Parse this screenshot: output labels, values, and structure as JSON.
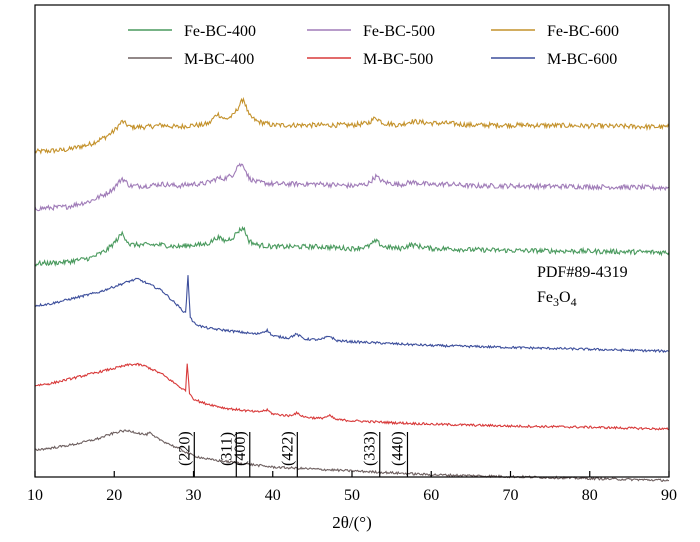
{
  "chart_data": {
    "type": "line",
    "title": "",
    "xlabel": "2θ/(°)",
    "ylabel": "",
    "xlim": [
      10,
      90
    ],
    "xticks": [
      "10",
      "20",
      "30",
      "40",
      "50",
      "60",
      "70",
      "80",
      "90"
    ],
    "grid": false,
    "legend_placement": "top",
    "legend": [
      {
        "name": "Fe-BC-400",
        "color": "#4a9a5e"
      },
      {
        "name": "Fe-BC-500",
        "color": "#a07cb8"
      },
      {
        "name": "Fe-BC-600",
        "color": "#c4922c"
      },
      {
        "name": "M-BC-400",
        "color": "#6e6060"
      },
      {
        "name": "M-BC-500",
        "color": "#d83a3a"
      },
      {
        "name": "M-BC-600",
        "color": "#3d4f9c"
      }
    ],
    "series": [
      {
        "key": "fe600",
        "color": "#c4922c",
        "x": [
          10,
          14,
          17,
          19,
          20,
          21,
          22,
          24,
          26,
          28,
          30,
          31,
          32,
          33,
          34,
          35,
          35.6,
          36.3,
          37,
          38,
          40,
          43,
          46,
          50,
          52,
          53,
          54,
          56,
          57.5,
          60,
          62,
          65,
          70,
          80,
          90
        ],
        "y": [
          0.535,
          0.54,
          0.555,
          0.575,
          0.59,
          0.615,
          0.6,
          0.6,
          0.605,
          0.6,
          0.605,
          0.605,
          0.61,
          0.635,
          0.62,
          0.63,
          0.65,
          0.675,
          0.63,
          0.615,
          0.605,
          0.605,
          0.605,
          0.605,
          0.61,
          0.625,
          0.61,
          0.605,
          0.615,
          0.61,
          0.61,
          0.605,
          0.605,
          0.603,
          0.6
        ]
      },
      {
        "key": "fe500",
        "color": "#a07cb8",
        "x": [
          10,
          14,
          17,
          19,
          20,
          21,
          22,
          24,
          26,
          28,
          30,
          31,
          32,
          33,
          34,
          35,
          35.6,
          36.3,
          37,
          38,
          40,
          43,
          46,
          50,
          52,
          53,
          54,
          56,
          57.5,
          60,
          62,
          65,
          70,
          80,
          90
        ],
        "y": [
          0.385,
          0.39,
          0.405,
          0.425,
          0.44,
          0.465,
          0.445,
          0.445,
          0.45,
          0.445,
          0.45,
          0.45,
          0.455,
          0.465,
          0.465,
          0.475,
          0.5,
          0.5,
          0.465,
          0.455,
          0.45,
          0.45,
          0.45,
          0.445,
          0.45,
          0.47,
          0.455,
          0.448,
          0.455,
          0.448,
          0.45,
          0.445,
          0.445,
          0.443,
          0.44
        ]
      },
      {
        "key": "fe400",
        "color": "#4a9a5e",
        "x": [
          10,
          14,
          17,
          19,
          20,
          21,
          22,
          24,
          26,
          28,
          30,
          31,
          32,
          33,
          34,
          35,
          35.6,
          36.3,
          37,
          38,
          40,
          43,
          46,
          50,
          52,
          53,
          54,
          56,
          57.5,
          60,
          62,
          65,
          70,
          80,
          90
        ],
        "y": [
          0.24,
          0.245,
          0.255,
          0.275,
          0.295,
          0.32,
          0.29,
          0.29,
          0.29,
          0.285,
          0.29,
          0.29,
          0.295,
          0.31,
          0.3,
          0.31,
          0.325,
          0.335,
          0.3,
          0.29,
          0.285,
          0.285,
          0.285,
          0.28,
          0.285,
          0.3,
          0.285,
          0.28,
          0.29,
          0.28,
          0.28,
          0.277,
          0.275,
          0.273,
          0.27
        ]
      },
      {
        "key": "m600",
        "color": "#3d4f9c",
        "x": [
          10,
          12,
          15,
          18,
          20,
          22,
          23,
          24,
          25,
          26,
          27,
          28,
          29,
          29.3,
          29.6,
          30,
          31,
          32,
          34,
          36,
          38,
          39.3,
          40,
          42,
          43,
          44,
          46,
          47.2,
          48,
          50,
          55,
          60,
          70,
          80,
          90
        ],
        "y": [
          0.13,
          0.135,
          0.15,
          0.165,
          0.18,
          0.195,
          0.2,
          0.19,
          0.18,
          0.17,
          0.15,
          0.13,
          0.11,
          0.21,
          0.1,
          0.085,
          0.075,
          0.07,
          0.065,
          0.06,
          0.055,
          0.065,
          0.05,
          0.045,
          0.055,
          0.042,
          0.04,
          0.05,
          0.038,
          0.035,
          0.03,
          0.025,
          0.02,
          0.015,
          0.01
        ]
      },
      {
        "key": "m500",
        "color": "#d83a3a",
        "x": [
          10,
          12,
          15,
          18,
          20,
          22,
          23,
          24,
          25,
          26,
          27,
          28,
          29,
          29.2,
          29.5,
          30,
          31,
          32,
          34,
          36,
          38,
          39.3,
          40,
          42,
          43,
          44,
          46,
          47.2,
          48,
          50,
          55,
          60,
          70,
          80,
          90
        ],
        "y": [
          -0.08,
          -0.075,
          -0.06,
          -0.045,
          -0.035,
          -0.025,
          -0.025,
          -0.03,
          -0.04,
          -0.05,
          -0.065,
          -0.08,
          -0.095,
          -0.02,
          -0.1,
          -0.115,
          -0.125,
          -0.13,
          -0.14,
          -0.145,
          -0.15,
          -0.145,
          -0.155,
          -0.16,
          -0.153,
          -0.163,
          -0.167,
          -0.16,
          -0.17,
          -0.173,
          -0.178,
          -0.182,
          -0.187,
          -0.19,
          -0.195
        ]
      },
      {
        "key": "m400",
        "color": "#6e6060",
        "x": [
          10,
          12,
          15,
          18,
          20,
          21,
          22,
          23,
          24,
          24.5,
          25,
          26,
          27,
          28,
          29,
          30,
          31,
          32,
          34,
          36,
          38,
          40,
          45,
          50,
          55,
          60,
          70,
          80,
          90
        ],
        "y": [
          -0.25,
          -0.245,
          -0.235,
          -0.22,
          -0.205,
          -0.2,
          -0.2,
          -0.205,
          -0.21,
          -0.205,
          -0.215,
          -0.225,
          -0.235,
          -0.245,
          -0.255,
          -0.265,
          -0.27,
          -0.275,
          -0.28,
          -0.285,
          -0.29,
          -0.295,
          -0.3,
          -0.305,
          -0.31,
          -0.315,
          -0.32,
          -0.325,
          -0.33
        ]
      }
    ],
    "reference": {
      "name": "PDF#89-4319",
      "formula_main": "Fe",
      "formula_sub1": "3",
      "formula_mid": "O",
      "formula_sub2": "4",
      "peaks": [
        {
          "x": 30.1,
          "label": "(220)"
        },
        {
          "x": 35.4,
          "label": "(311)"
        },
        {
          "x": 37.1,
          "label": "(400)"
        },
        {
          "x": 43.1,
          "label": "(422)"
        },
        {
          "x": 53.5,
          "label": "(333)"
        },
        {
          "x": 57.0,
          "label": "(440)"
        }
      ]
    }
  }
}
